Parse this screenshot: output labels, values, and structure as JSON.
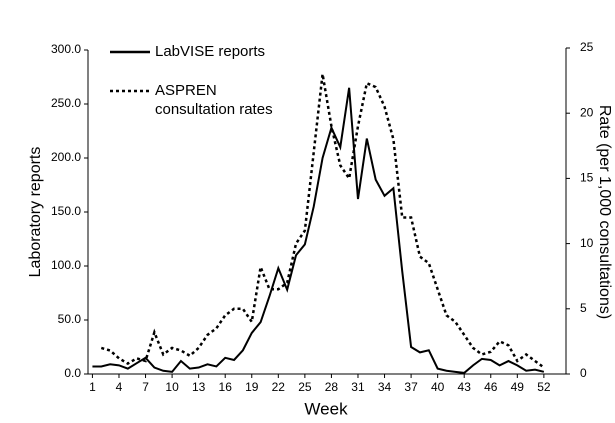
{
  "chart_data": {
    "type": "line",
    "x_label": "Week",
    "y_label": "Laboratory reports",
    "y2_label": "Rate (per 1,000 consultations)",
    "x": [
      1,
      2,
      3,
      4,
      5,
      6,
      7,
      8,
      9,
      10,
      11,
      12,
      13,
      14,
      15,
      16,
      17,
      18,
      19,
      20,
      21,
      22,
      23,
      24,
      25,
      26,
      27,
      28,
      29,
      30,
      31,
      32,
      33,
      34,
      35,
      36,
      37,
      38,
      39,
      40,
      41,
      42,
      43,
      44,
      45,
      46,
      47,
      48,
      49,
      50,
      51,
      52
    ],
    "xlim": [
      0.5,
      54.5
    ],
    "xticks": [
      1,
      4,
      7,
      10,
      13,
      16,
      19,
      22,
      25,
      28,
      31,
      34,
      37,
      40,
      43,
      46,
      49,
      52
    ],
    "ylim": [
      0,
      300
    ],
    "yticks": [
      {
        "value": 0,
        "label": "0.0"
      },
      {
        "value": 50,
        "label": "50.0"
      },
      {
        "value": 100,
        "label": "100.0"
      },
      {
        "value": 150,
        "label": "150.0"
      },
      {
        "value": 200,
        "label": "200.0"
      },
      {
        "value": 250,
        "label": "250.0"
      },
      {
        "value": 300,
        "label": "300.0"
      }
    ],
    "y2lim": [
      0,
      25
    ],
    "y2ticks": [
      0,
      5,
      10,
      15,
      20,
      25
    ],
    "legend": "top-left",
    "series": [
      {
        "name": "LabVISE reports",
        "color": "#000000",
        "style": "solid",
        "values": [
          7,
          7,
          9,
          8,
          5,
          10,
          15,
          6,
          3,
          2,
          12,
          5,
          6,
          9,
          7,
          15,
          13,
          22,
          38,
          48,
          72,
          98,
          78,
          110,
          120,
          155,
          200,
          228,
          210,
          265,
          162,
          218,
          180,
          165,
          172,
          95,
          25,
          20,
          22,
          5,
          3,
          2,
          1,
          8,
          14,
          13,
          8,
          12,
          8,
          3,
          4,
          2
        ]
      },
      {
        "name": "ASPREN consultation rates",
        "color": "#000000",
        "style": "dotted",
        "axis": "y2",
        "values": [
          null,
          2,
          1.8,
          1.2,
          0.8,
          1.2,
          1,
          3.2,
          1.5,
          2,
          1.8,
          1.4,
          2,
          3,
          3.5,
          4.5,
          5,
          5,
          4,
          8.2,
          6.5,
          6.5,
          7,
          10,
          11,
          17,
          23,
          19,
          16,
          15,
          19,
          22.3,
          22,
          20.5,
          18,
          12,
          12,
          9,
          8.5,
          6.5,
          4.5,
          4,
          3,
          2,
          1.5,
          1.7,
          2.5,
          2.2,
          1,
          1.5,
          1,
          0.5
        ]
      }
    ]
  }
}
